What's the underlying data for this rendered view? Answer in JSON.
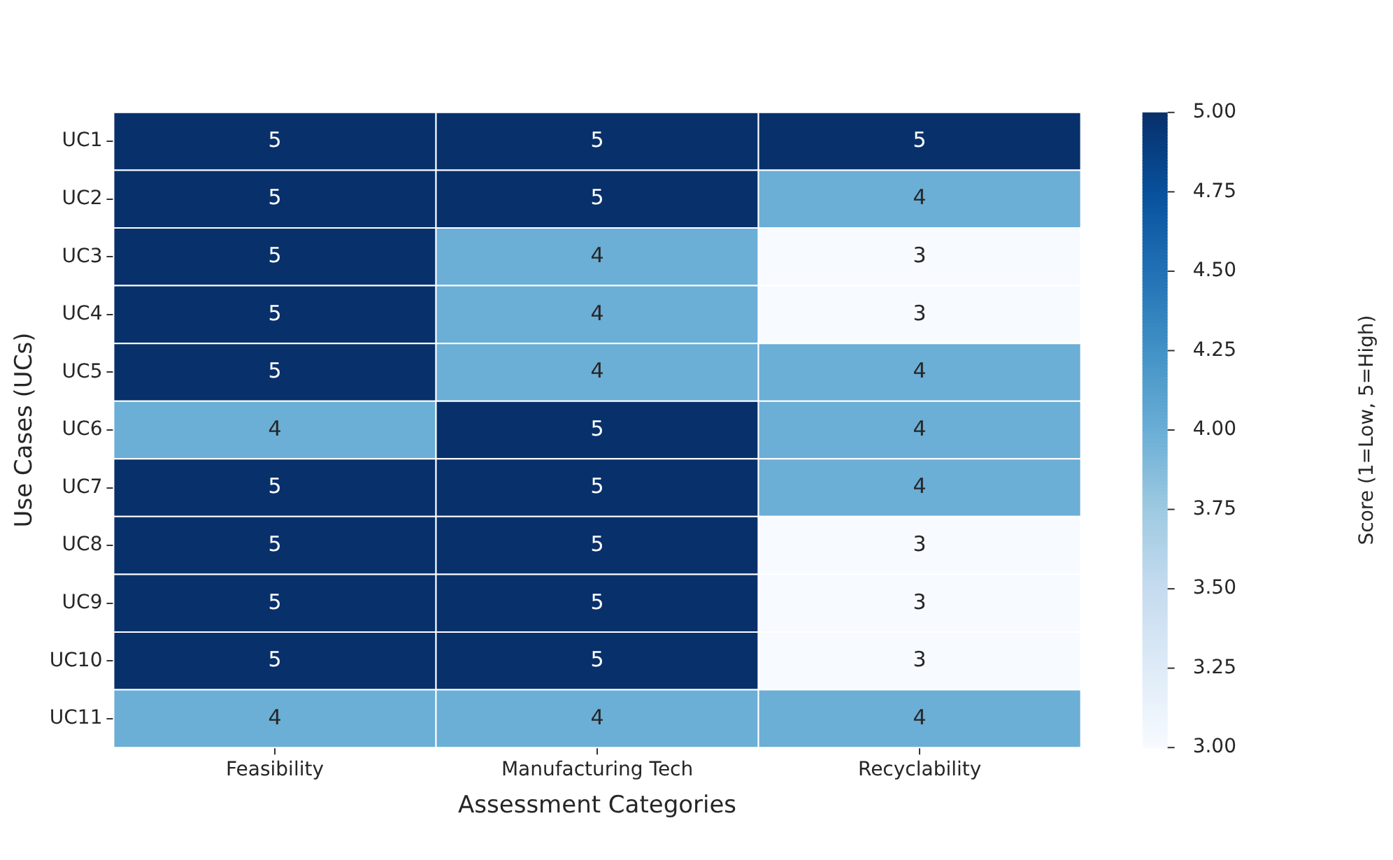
{
  "chart_data": {
    "type": "heatmap",
    "xlabel": "Assessment Categories",
    "ylabel": "Use Cases (UCs)",
    "clabel": "Score (1=Low, 5=High)",
    "categories": [
      "Feasibility",
      "Manufacturing Tech",
      "Recyclability"
    ],
    "y_categories": [
      "UC1",
      "UC2",
      "UC3",
      "UC4",
      "UC5",
      "UC6",
      "UC7",
      "UC8",
      "UC9",
      "UC10",
      "UC11"
    ],
    "cells": [
      [
        5,
        5,
        5
      ],
      [
        5,
        5,
        4
      ],
      [
        5,
        4,
        3
      ],
      [
        5,
        4,
        3
      ],
      [
        5,
        4,
        4
      ],
      [
        4,
        5,
        4
      ],
      [
        5,
        5,
        4
      ],
      [
        5,
        5,
        3
      ],
      [
        5,
        5,
        3
      ],
      [
        5,
        5,
        3
      ],
      [
        4,
        4,
        4
      ]
    ],
    "clim": [
      3,
      5
    ],
    "cticks": [
      {
        "value": 3,
        "label": "3.00"
      },
      {
        "value": 3.25,
        "label": "3.25"
      },
      {
        "value": 3.5,
        "label": "3.50"
      },
      {
        "value": 3.75,
        "label": "3.75"
      },
      {
        "value": 4,
        "label": "4.00"
      },
      {
        "value": 4.25,
        "label": "4.25"
      },
      {
        "value": 4.5,
        "label": "4.50"
      },
      {
        "value": 4.75,
        "label": "4.75"
      },
      {
        "value": 5,
        "label": "5.00"
      }
    ],
    "data_labels": true
  }
}
